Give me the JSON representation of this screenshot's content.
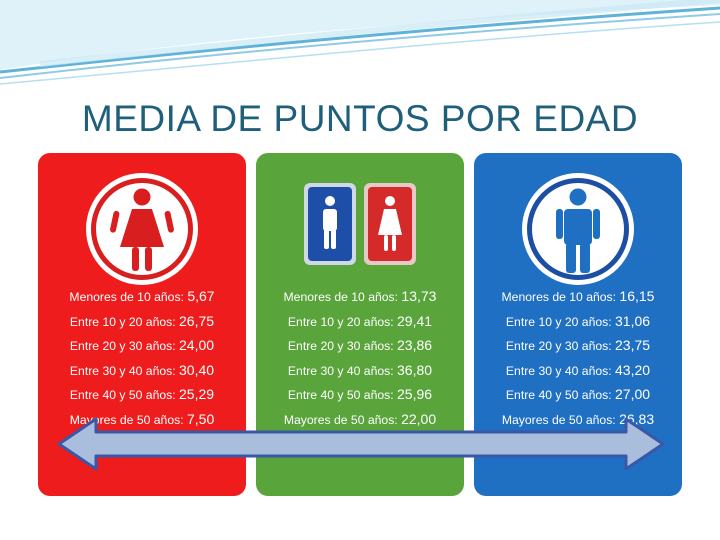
{
  "slide": {
    "title": "MEDIA DE PUNTOS POR EDAD"
  },
  "colors": {
    "title": "#1f5f7a",
    "female_panel": "#ee1c1c",
    "mixed_panel": "#5aa43c",
    "male_panel": "#1f6fc2",
    "arrow_fill": "#a9bddc",
    "arrow_stroke": "#3a57a8",
    "wave": "#5fb2d8"
  },
  "panels": [
    {
      "id": "female",
      "icon": "woman-restroom-icon",
      "rows": [
        {
          "label": "Menores de 10 años: ",
          "value": "5,67"
        },
        {
          "label": "Entre 10 y 20 años: ",
          "value": "26,75"
        },
        {
          "label": "Entre 20 y 30 años: ",
          "value": "24,00"
        },
        {
          "label": "Entre 30 y 40 años: ",
          "value": "30,40"
        },
        {
          "label": "Entre 40 y 50 años: ",
          "value": "25,29"
        },
        {
          "label": "Mayores de 50 años: ",
          "value": "7,50"
        }
      ]
    },
    {
      "id": "mixed",
      "icon": "restroom-sign-icon",
      "rows": [
        {
          "label": "Menores de 10 años: ",
          "value": "13,73"
        },
        {
          "label": "Entre 10 y 20 años: ",
          "value": "29,41"
        },
        {
          "label": "Entre 20 y 30 años: ",
          "value": "23,86"
        },
        {
          "label": "Entre 30 y 40 años: ",
          "value": "36,80"
        },
        {
          "label": "Entre 40 y 50 años: ",
          "value": "25,96"
        },
        {
          "label": "Mayores de 50 años: ",
          "value": "22,00"
        }
      ]
    },
    {
      "id": "male",
      "icon": "man-restroom-icon",
      "rows": [
        {
          "label": "Menores de 10 años: ",
          "value": "16,15"
        },
        {
          "label": "Entre 10 y 20 años: ",
          "value": "31,06"
        },
        {
          "label": "Entre 20 y 30 años: ",
          "value": "23,75"
        },
        {
          "label": "Entre 30 y 40 años: ",
          "value": "43,20"
        },
        {
          "label": "Entre 40 y 50 años: ",
          "value": "27,00"
        },
        {
          "label": "Mayores de 50 años: ",
          "value": "26,83"
        }
      ]
    }
  ]
}
